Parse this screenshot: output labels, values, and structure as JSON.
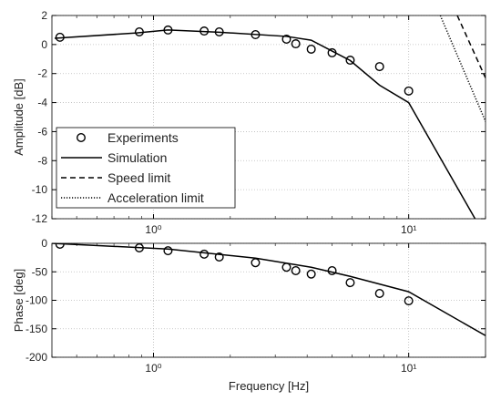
{
  "chart_data": [
    {
      "type": "line",
      "ylabel": "Amplitude [dB]",
      "xscale": "log",
      "grid": true,
      "legend": "lower left",
      "xlim": [
        0.4,
        20
      ],
      "xticks": [
        {
          "value": 1,
          "label": "10⁰"
        },
        {
          "value": 10,
          "label": "10¹"
        }
      ],
      "ylim": [
        -12,
        2
      ],
      "yticks": [
        2,
        0,
        -2,
        -4,
        -6,
        -8,
        -10,
        -12
      ],
      "series": [
        {
          "name": "Experiments",
          "style": "marker",
          "color": "#000000",
          "x": [
            0.43,
            0.88,
            1.14,
            1.58,
            1.81,
            2.51,
            3.32,
            3.61,
            4.15,
            5.01,
            5.9,
            7.69,
            10
          ],
          "values": [
            0.5,
            0.87,
            1.0,
            0.93,
            0.87,
            0.68,
            0.37,
            0.05,
            -0.32,
            -0.57,
            -1.08,
            -1.52,
            -3.2
          ]
        },
        {
          "name": "Simulation",
          "style": "solid",
          "color": "#000000",
          "x": [
            0.41,
            0.86,
            1.14,
            1.81,
            3.32,
            4.15,
            5.9,
            7.69,
            10,
            18.2
          ],
          "values": [
            0.43,
            0.8,
            1.0,
            0.85,
            0.56,
            0.3,
            -1.1,
            -2.8,
            -4.0,
            -12
          ]
        },
        {
          "name": "Speed limit",
          "style": "dashed",
          "color": "#000000",
          "x": [
            15.5,
            20
          ],
          "values": [
            2,
            -2.3
          ]
        },
        {
          "name": "Acceleration limit",
          "style": "dotted",
          "color": "#000000",
          "x": [
            13.3,
            20
          ],
          "values": [
            2,
            -5.3
          ]
        }
      ]
    },
    {
      "type": "line",
      "ylabel": "Phase [deg]",
      "xlabel": "Frequency [Hz]",
      "xscale": "log",
      "grid": true,
      "xlim": [
        0.4,
        20
      ],
      "xticks": [
        {
          "value": 1,
          "label": "10⁰"
        },
        {
          "value": 10,
          "label": "10¹"
        }
      ],
      "ylim": [
        -200,
        0
      ],
      "yticks": [
        0,
        -50,
        -100,
        -150,
        -200
      ],
      "series": [
        {
          "style": "marker",
          "color": "#000000",
          "x": [
            0.43,
            0.88,
            1.14,
            1.58,
            1.81,
            2.51,
            3.32,
            3.61,
            4.15,
            5.01,
            5.9,
            7.69,
            10
          ],
          "values": [
            -1.6,
            -8,
            -13,
            -19,
            -24,
            -34,
            -42,
            -48,
            -54,
            -48,
            -69,
            -88,
            -101
          ]
        },
        {
          "style": "solid",
          "color": "#000000",
          "x": [
            0.4,
            1.14,
            2.51,
            4.15,
            5.9,
            10,
            20
          ],
          "values": [
            0,
            -10,
            -26,
            -42,
            -58,
            -85,
            -162
          ]
        }
      ]
    }
  ]
}
